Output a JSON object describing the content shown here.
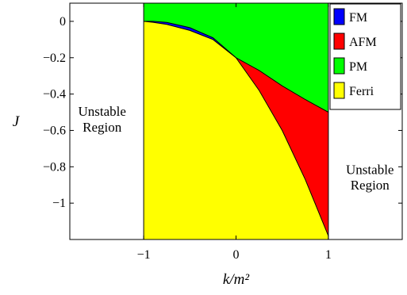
{
  "chart_data": {
    "type": "area",
    "title": "",
    "xlabel": "k/m²",
    "ylabel": "J",
    "xlim": [
      -1.8,
      1.8
    ],
    "ylim": [
      -1.2,
      0.1
    ],
    "xticks": [
      {
        "value": -1,
        "label": "−1"
      },
      {
        "value": 0,
        "label": "0"
      },
      {
        "value": 1,
        "label": "1"
      }
    ],
    "yticks": [
      {
        "value": 0,
        "label": "0"
      },
      {
        "value": -0.2,
        "label": "−0.2"
      },
      {
        "value": -0.4,
        "label": "−0.4"
      },
      {
        "value": -0.6,
        "label": "−0.6"
      },
      {
        "value": -0.8,
        "label": "−0.8"
      },
      {
        "value": -1,
        "label": "−1"
      }
    ],
    "grid": false,
    "legend_position": "top-right",
    "series": [
      {
        "name": "FM",
        "color": "#0000ff"
      },
      {
        "name": "AFM",
        "color": "#ff0000"
      },
      {
        "name": "PM",
        "color": "#00ff00"
      },
      {
        "name": "Ferri",
        "color": "#ffff00"
      }
    ],
    "boundaries": {
      "ferri_upper": {
        "x": [
          -1,
          -0.9,
          -0.75,
          -0.5,
          -0.25,
          0,
          0.25,
          0.5,
          0.75,
          1
        ],
        "y": [
          0,
          -0.005,
          -0.017,
          -0.05,
          -0.1,
          -0.2,
          -0.38,
          -0.6,
          -0.87,
          -1.18
        ]
      },
      "fm_upper": {
        "x": [
          -1,
          -0.9,
          -0.75,
          -0.5,
          -0.25,
          0
        ],
        "y": [
          0,
          0,
          -0.006,
          -0.035,
          -0.09,
          -0.2
        ]
      },
      "afm_upper": {
        "x": [
          0,
          0.25,
          0.5,
          0.75,
          1
        ],
        "y": [
          -0.2,
          -0.27,
          -0.355,
          -0.43,
          -0.5
        ]
      }
    },
    "annotations": [
      {
        "text": [
          "Unstable",
          "Region"
        ],
        "x": -1.45,
        "y": -0.55
      },
      {
        "text": [
          "Unstable",
          "Region"
        ],
        "x": 1.45,
        "y": -0.87
      }
    ]
  }
}
